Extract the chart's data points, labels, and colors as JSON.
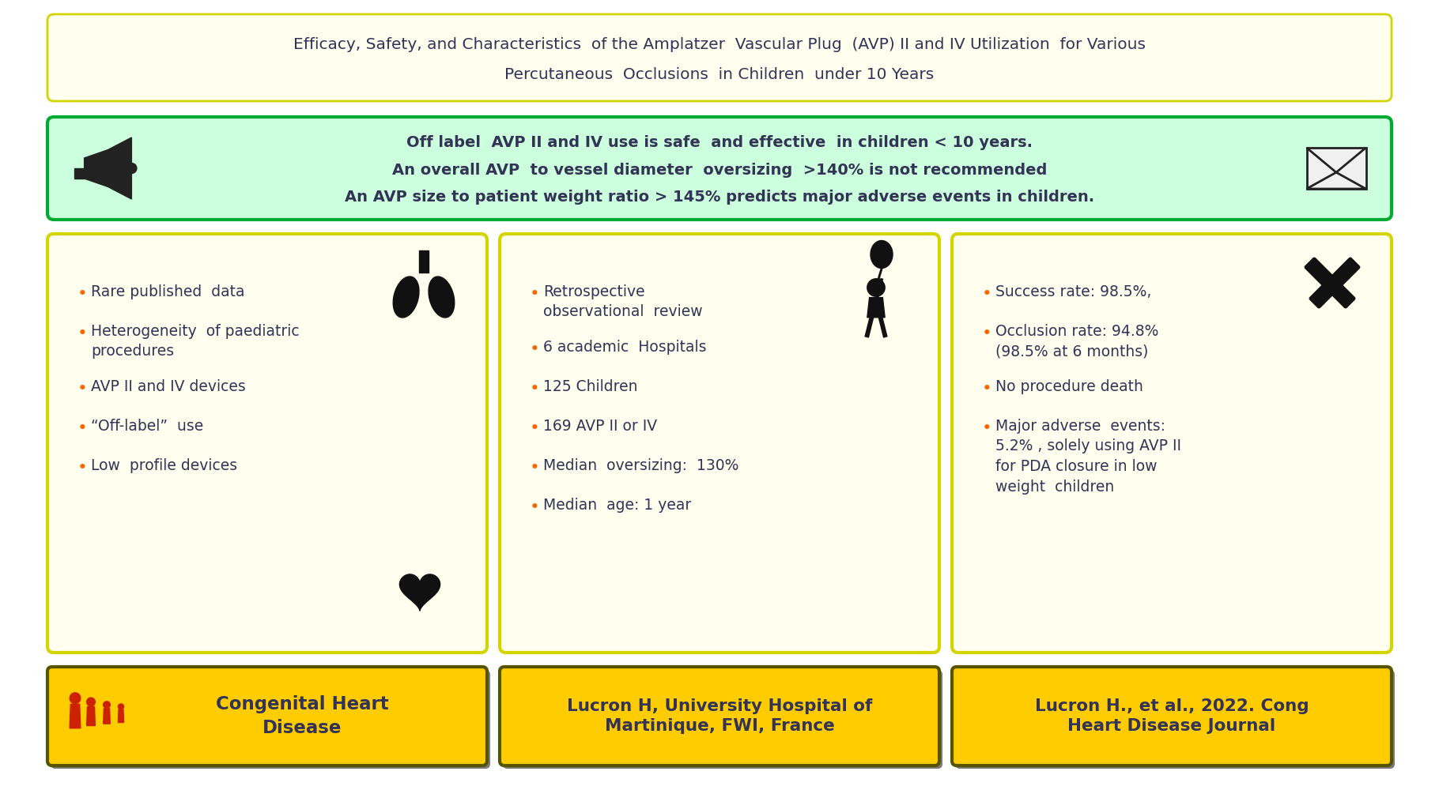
{
  "title_line1": "Efficacy, Safety, and Characteristics  of the Amplatzer  Vascular Plug  (AVP) II and IV Utilization  for Various",
  "title_line2": "Percutaneous  Occlusions  in Children  under 10 Years",
  "title_bg": "#fffff0",
  "title_border": "#d4d400",
  "banner_bg": "#ccffdd",
  "banner_border": "#00aa33",
  "banner_text_line1": "Off label  AVP II and IV use is safe  and effective  in children < 10 years.",
  "banner_text_line2": "An overall AVP  to vessel diameter  oversizing  >140% is not recommended",
  "banner_text_line3": "An AVP size to patient weight ratio > 145% predicts major adverse events in children.",
  "card_bg": "#fffff0",
  "card_border": "#d4d400",
  "footer_bg": "#ffcc00",
  "footer_border": "#555500",
  "col1_bullets": [
    "Rare published  data",
    "Heterogeneity  of paediatric\nprocedures",
    "AVP II and IV devices",
    "“Off-label”  use",
    "Low  profile devices"
  ],
  "col2_bullets": [
    "Retrospective\nobservational  review",
    "6 academic  Hospitals",
    "125 Children",
    "169 AVP II or IV",
    "Median  oversizing:  130%",
    "Median  age: 1 year"
  ],
  "col3_bullets": [
    "Success rate: 98.5%,",
    "Occlusion rate: 94.8%\n(98.5% at 6 months)",
    "No procedure death",
    "Major adverse  events:\n5.2% , solely using AVP II\nfor PDA closure in low\nweight  children"
  ],
  "footer1_text": "Congenital Heart\nDisease",
  "footer2_text": "Lucron H, University Hospital of\nMartinique, FWI, France",
  "footer3_text": "Lucron H., et al., 2022. Cong\nHeart Disease Journal",
  "bullet_color": "#ff6600",
  "text_color": "#333355",
  "banner_text_color": "#333355",
  "footer_text_color": "#333355"
}
